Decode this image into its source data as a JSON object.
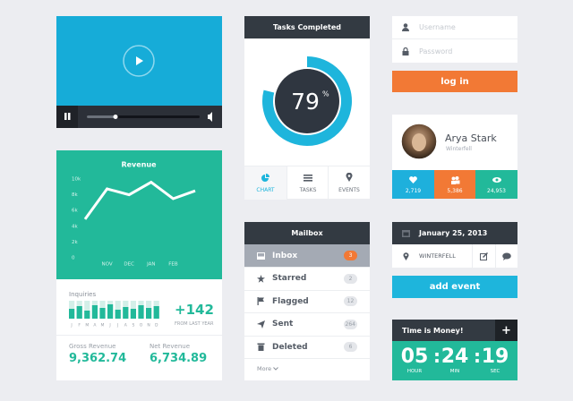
{
  "revenue": {
    "type": "line",
    "title": "Revenue",
    "categories": [
      null,
      "NOV",
      "DEC",
      "JAN",
      "FEB",
      null
    ],
    "values": [
      4900,
      8750,
      8000,
      9600,
      7500,
      8500
    ],
    "color": "#ffffff",
    "ylim": [
      0,
      10000
    ],
    "yticks": [
      0,
      {
        "value": 2000,
        "label": "2k"
      },
      {
        "value": 4000,
        "label": "4k"
      },
      {
        "value": 6000,
        "label": "6k"
      },
      {
        "value": 8000,
        "label": "8k"
      },
      {
        "value": 10000,
        "label": "10k"
      }
    ]
  },
  "inquiries": {
    "type": "bar",
    "label": "Inquiries",
    "categories": [
      "J",
      "F",
      "M",
      "A",
      "M",
      "J",
      "J",
      "A",
      "S",
      "O",
      "N",
      "D"
    ],
    "values": [
      55,
      70,
      45,
      75,
      60,
      80,
      50,
      65,
      55,
      75,
      60,
      70
    ],
    "ylim": [
      0,
      100
    ],
    "color": "#22b99a",
    "change": "+142",
    "change_note": "FROM LAST YEAR"
  },
  "gross_revenue": {
    "label": "Gross Revenue",
    "value": "9,362.74"
  },
  "net_revenue": {
    "label": "Net Revenue",
    "value": "6,734.89"
  },
  "tasks": {
    "type": "pie",
    "title": "Tasks Completed",
    "percent": 79,
    "unit": "%",
    "color": "#1eb5dc",
    "tabs": [
      "CHART",
      "TASKS",
      "EVENTS"
    ]
  },
  "mailbox": {
    "title": "Mailbox",
    "items": [
      {
        "label": "Inbox",
        "count": "3"
      },
      {
        "label": "Starred",
        "count": "2"
      },
      {
        "label": "Flagged",
        "count": "12"
      },
      {
        "label": "Sent",
        "count": "264"
      },
      {
        "label": "Deleted",
        "count": "6"
      }
    ],
    "more": "More"
  },
  "login": {
    "username": "Username",
    "password": "Password",
    "button": "log in"
  },
  "profile": {
    "name": "Arya Stark",
    "location": "Winterfell",
    "stats": [
      "2,719",
      "5,386",
      "24,953"
    ]
  },
  "event": {
    "date": "January 25, 2013",
    "location": "WINTERFELL",
    "button": "add event"
  },
  "timer": {
    "title": "Time is Money!",
    "add": "+",
    "separator": ":",
    "hours": "05",
    "minutes": "24",
    "seconds": "19",
    "hours_label": "HOUR",
    "minutes_label": "MIN",
    "seconds_label": "SEC"
  }
}
